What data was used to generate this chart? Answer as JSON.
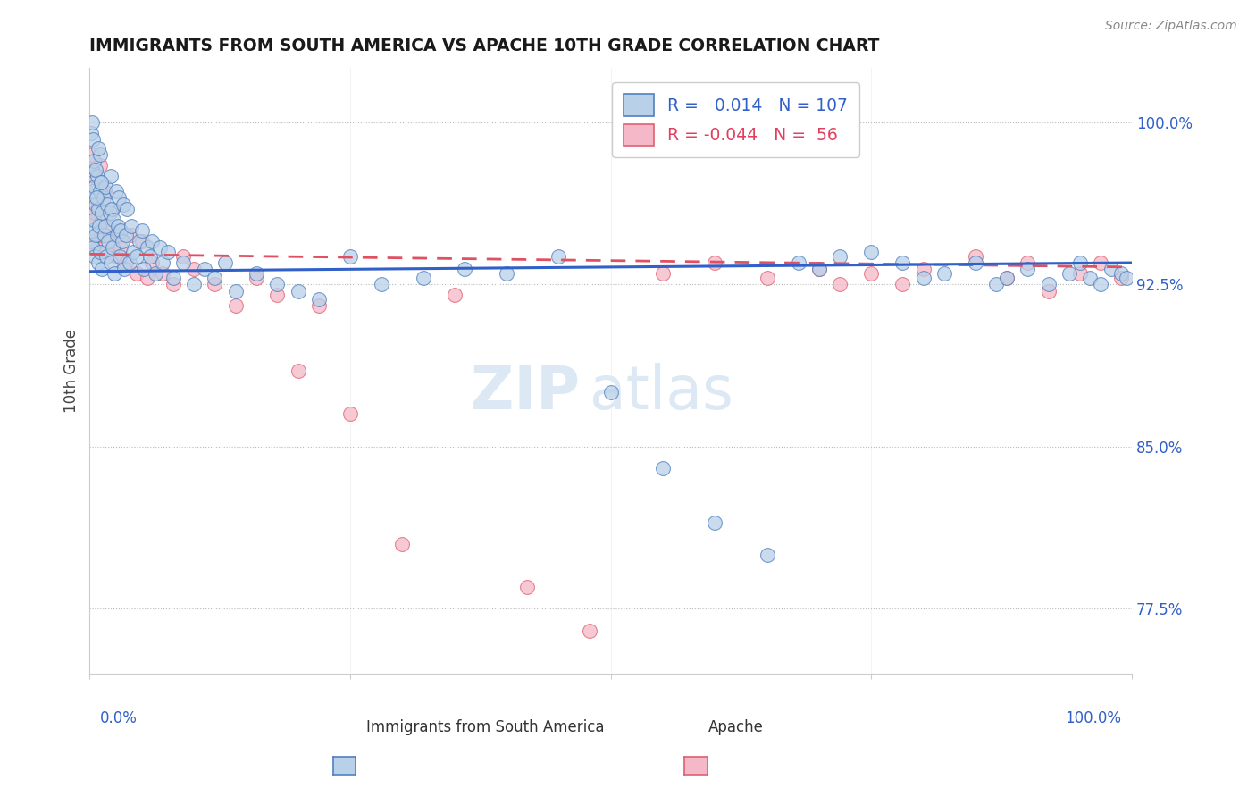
{
  "title": "IMMIGRANTS FROM SOUTH AMERICA VS APACHE 10TH GRADE CORRELATION CHART",
  "source_text": "Source: ZipAtlas.com",
  "ylabel": "10th Grade",
  "x_min": 0.0,
  "x_max": 100.0,
  "y_min": 74.5,
  "y_max": 102.5,
  "right_y_ticks": [
    77.5,
    85.0,
    92.5,
    100.0
  ],
  "blue_R": 0.014,
  "blue_N": 107,
  "pink_R": -0.044,
  "pink_N": 56,
  "blue_color": "#b8d0e8",
  "pink_color": "#f5b8c8",
  "blue_edge_color": "#5080c0",
  "pink_edge_color": "#e06070",
  "blue_line_color": "#3060c8",
  "pink_line_color": "#e05060",
  "watermark_color": "#dce8f4",
  "blue_trend_start": 93.2,
  "blue_trend_end": 93.5,
  "pink_trend_start": 93.8,
  "pink_trend_end": 93.2,
  "blue_scatter_x": [
    0.1,
    0.2,
    0.2,
    0.3,
    0.3,
    0.4,
    0.4,
    0.5,
    0.5,
    0.6,
    0.6,
    0.7,
    0.8,
    0.8,
    0.9,
    1.0,
    1.0,
    1.0,
    1.1,
    1.2,
    1.2,
    1.3,
    1.4,
    1.5,
    1.5,
    1.6,
    1.7,
    1.8,
    1.9,
    2.0,
    2.0,
    2.1,
    2.2,
    2.3,
    2.4,
    2.5,
    2.6,
    2.7,
    2.8,
    2.9,
    3.0,
    3.1,
    3.2,
    3.3,
    3.5,
    3.6,
    3.8,
    4.0,
    4.2,
    4.5,
    4.8,
    5.0,
    5.2,
    5.5,
    5.8,
    6.0,
    6.3,
    6.7,
    7.0,
    7.5,
    8.0,
    9.0,
    10.0,
    11.0,
    12.0,
    13.0,
    14.0,
    16.0,
    18.0,
    20.0,
    22.0,
    25.0,
    28.0,
    32.0,
    36.0,
    40.0,
    45.0,
    50.0,
    55.0,
    60.0,
    65.0,
    68.0,
    70.0,
    72.0,
    75.0,
    78.0,
    80.0,
    82.0,
    85.0,
    87.0,
    88.0,
    90.0,
    92.0,
    94.0,
    95.0,
    96.0,
    97.0,
    98.0,
    99.0,
    99.5,
    0.15,
    0.25,
    0.35,
    0.55,
    0.65,
    0.85,
    1.05
  ],
  "blue_scatter_y": [
    94.5,
    97.8,
    95.0,
    96.8,
    94.2,
    98.2,
    95.5,
    97.0,
    93.8,
    96.2,
    94.8,
    97.5,
    96.0,
    93.5,
    95.2,
    98.5,
    96.8,
    94.0,
    97.2,
    95.8,
    93.2,
    96.5,
    94.8,
    97.0,
    95.2,
    93.8,
    96.2,
    94.5,
    95.8,
    97.5,
    93.5,
    96.0,
    94.2,
    95.5,
    93.0,
    96.8,
    94.8,
    95.2,
    96.5,
    93.8,
    95.0,
    94.5,
    96.2,
    93.2,
    94.8,
    96.0,
    93.5,
    95.2,
    94.0,
    93.8,
    94.5,
    95.0,
    93.2,
    94.2,
    93.8,
    94.5,
    93.0,
    94.2,
    93.5,
    94.0,
    92.8,
    93.5,
    92.5,
    93.2,
    92.8,
    93.5,
    92.2,
    93.0,
    92.5,
    92.2,
    91.8,
    93.8,
    92.5,
    92.8,
    93.2,
    93.0,
    93.8,
    87.5,
    84.0,
    81.5,
    80.0,
    93.5,
    93.2,
    93.8,
    94.0,
    93.5,
    92.8,
    93.0,
    93.5,
    92.5,
    92.8,
    93.2,
    92.5,
    93.0,
    93.5,
    92.8,
    92.5,
    93.2,
    93.0,
    92.8,
    99.5,
    100.0,
    99.2,
    97.8,
    96.5,
    98.8,
    97.2
  ],
  "pink_scatter_x": [
    0.1,
    0.2,
    0.3,
    0.3,
    0.4,
    0.5,
    0.6,
    0.7,
    0.8,
    1.0,
    1.0,
    1.2,
    1.4,
    1.6,
    1.8,
    2.0,
    2.2,
    2.5,
    2.8,
    3.0,
    3.5,
    4.0,
    4.5,
    5.0,
    5.5,
    6.0,
    7.0,
    8.0,
    9.0,
    10.0,
    12.0,
    14.0,
    16.0,
    18.0,
    20.0,
    22.0,
    25.0,
    30.0,
    35.0,
    42.0,
    48.0,
    55.0,
    60.0,
    65.0,
    70.0,
    72.0,
    75.0,
    78.0,
    80.0,
    85.0,
    88.0,
    90.0,
    92.0,
    95.0,
    97.0,
    99.0
  ],
  "pink_scatter_y": [
    95.5,
    98.5,
    96.0,
    94.2,
    97.5,
    95.8,
    94.5,
    97.0,
    96.2,
    98.0,
    94.8,
    95.5,
    96.8,
    94.0,
    95.2,
    94.5,
    96.0,
    93.8,
    95.0,
    94.2,
    93.5,
    94.8,
    93.0,
    94.5,
    92.8,
    93.5,
    93.0,
    92.5,
    93.8,
    93.2,
    92.5,
    91.5,
    92.8,
    92.0,
    88.5,
    91.5,
    86.5,
    80.5,
    92.0,
    78.5,
    76.5,
    93.0,
    93.5,
    92.8,
    93.2,
    92.5,
    93.0,
    92.5,
    93.2,
    93.8,
    92.8,
    93.5,
    92.2,
    93.0,
    93.5,
    92.8
  ]
}
